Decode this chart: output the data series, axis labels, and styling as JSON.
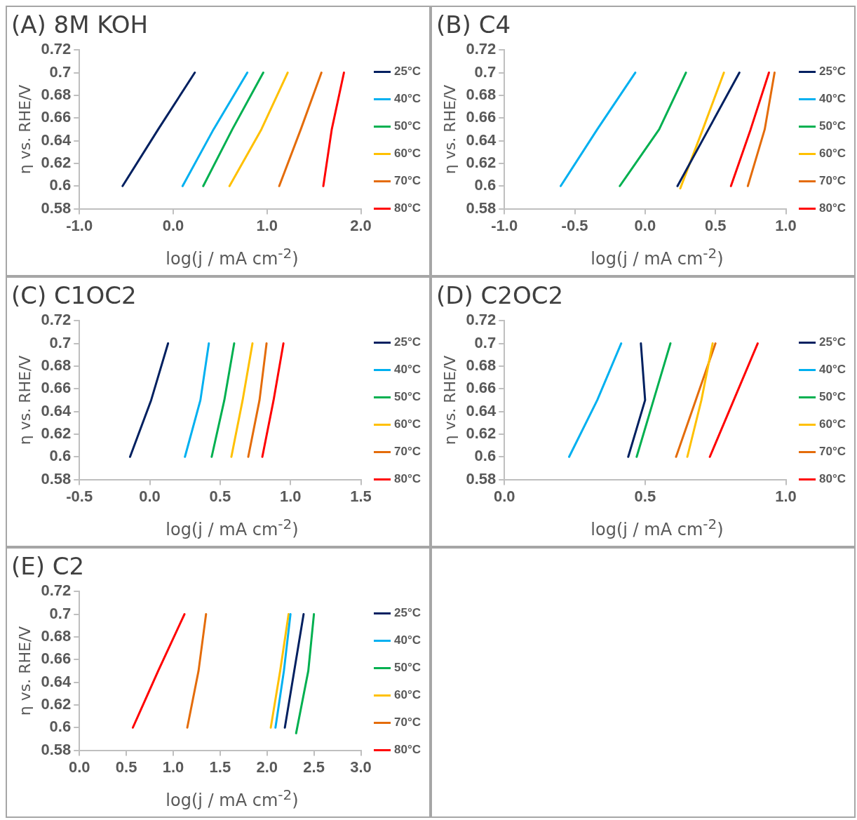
{
  "chart_data": [
    {
      "type": "line",
      "title": "(A) 8M KOH",
      "xlabel": "log(j / mA cm$^{-2}$)",
      "ylabel": "η vs. RHE/V",
      "legend": "right",
      "xlim": [
        -1,
        2
      ],
      "xticks": [
        {
          "value": -1,
          "label": "-1.0"
        },
        {
          "value": 0,
          "label": "0.0"
        },
        {
          "value": 1,
          "label": "1.0"
        },
        {
          "value": 2,
          "label": "2.0"
        }
      ],
      "ylim": [
        0.58,
        0.72
      ],
      "yticks": [
        0.58,
        0.6,
        0.62,
        0.64,
        0.66,
        0.68,
        0.7,
        0.72
      ],
      "series": [
        {
          "name": "25°C",
          "color": "#002060",
          "x": [
            -0.54,
            -0.16,
            0.23
          ],
          "values": [
            0.6,
            0.65,
            0.7
          ]
        },
        {
          "name": "40°C",
          "color": "#00b0f0",
          "x": [
            0.1,
            0.43,
            0.79
          ],
          "values": [
            0.6,
            0.65,
            0.7
          ]
        },
        {
          "name": "50°C",
          "color": "#00b050",
          "x": [
            0.32,
            0.63,
            0.96
          ],
          "values": [
            0.6,
            0.65,
            0.7
          ]
        },
        {
          "name": "60°C",
          "color": "#ffc000",
          "x": [
            0.6,
            0.94,
            1.22
          ],
          "values": [
            0.6,
            0.65,
            0.7
          ]
        },
        {
          "name": "70°C",
          "color": "#e46c0a",
          "x": [
            1.13,
            1.36,
            1.58
          ],
          "values": [
            0.6,
            0.65,
            0.7
          ]
        },
        {
          "name": "80°C",
          "color": "#ff0000",
          "x": [
            1.6,
            1.69,
            1.82
          ],
          "values": [
            0.6,
            0.65,
            0.7
          ]
        }
      ]
    },
    {
      "type": "line",
      "title": "(B) C4",
      "xlabel": "log(j / mA cm$^{-2}$)",
      "ylabel": "η vs. RHE/V",
      "legend": "right",
      "xlim": [
        -1,
        1
      ],
      "xticks": [
        {
          "value": -1,
          "label": "-1.0"
        },
        {
          "value": -0.5,
          "label": "-0.5"
        },
        {
          "value": 0,
          "label": "0.0"
        },
        {
          "value": 0.5,
          "label": "0.5"
        },
        {
          "value": 1,
          "label": "1.0"
        }
      ],
      "ylim": [
        0.58,
        0.72
      ],
      "yticks": [
        0.58,
        0.6,
        0.62,
        0.64,
        0.66,
        0.68,
        0.7,
        0.72
      ],
      "series": [
        {
          "name": "25°C",
          "color": "#002060",
          "x": [
            0.23,
            0.45,
            0.67
          ],
          "values": [
            0.6,
            0.65,
            0.7
          ]
        },
        {
          "name": "40°C",
          "color": "#00b0f0",
          "x": [
            -0.6,
            -0.34,
            -0.07
          ],
          "values": [
            0.6,
            0.65,
            0.7
          ]
        },
        {
          "name": "50°C",
          "color": "#00b050",
          "x": [
            -0.18,
            0.1,
            0.29
          ],
          "values": [
            0.6,
            0.65,
            0.7
          ]
        },
        {
          "name": "60°C",
          "color": "#ffc000",
          "x": [
            0.25,
            0.41,
            0.56
          ],
          "values": [
            0.598,
            0.65,
            0.7
          ]
        },
        {
          "name": "70°C",
          "color": "#e46c0a",
          "x": [
            0.73,
            0.85,
            0.92
          ],
          "values": [
            0.6,
            0.65,
            0.7
          ]
        },
        {
          "name": "80°C",
          "color": "#ff0000",
          "x": [
            0.61,
            0.75,
            0.88
          ],
          "values": [
            0.6,
            0.65,
            0.7
          ]
        }
      ]
    },
    {
      "type": "line",
      "title": "(C) C1OC2",
      "xlabel": "log(j / mA cm$^{-2}$)",
      "ylabel": "η vs. RHE/V",
      "legend": "right",
      "xlim": [
        -0.5,
        1.5
      ],
      "xticks": [
        {
          "value": -0.5,
          "label": "-0.5"
        },
        {
          "value": 0,
          "label": "0.0"
        },
        {
          "value": 0.5,
          "label": "0.5"
        },
        {
          "value": 1,
          "label": "1.0"
        },
        {
          "value": 1.5,
          "label": "1.5"
        }
      ],
      "ylim": [
        0.58,
        0.72
      ],
      "yticks": [
        0.58,
        0.6,
        0.62,
        0.64,
        0.66,
        0.68,
        0.7,
        0.72
      ],
      "series": [
        {
          "name": "25°C",
          "color": "#002060",
          "x": [
            -0.14,
            0.01,
            0.13
          ],
          "values": [
            0.6,
            0.65,
            0.7
          ]
        },
        {
          "name": "40°C",
          "color": "#00b0f0",
          "x": [
            0.25,
            0.36,
            0.42
          ],
          "values": [
            0.6,
            0.65,
            0.7
          ]
        },
        {
          "name": "50°C",
          "color": "#00b050",
          "x": [
            0.44,
            0.53,
            0.6
          ],
          "values": [
            0.6,
            0.65,
            0.7
          ]
        },
        {
          "name": "60°C",
          "color": "#ffc000",
          "x": [
            0.58,
            0.66,
            0.73
          ],
          "values": [
            0.6,
            0.65,
            0.7
          ]
        },
        {
          "name": "70°C",
          "color": "#e46c0a",
          "x": [
            0.7,
            0.78,
            0.83
          ],
          "values": [
            0.6,
            0.65,
            0.7
          ]
        },
        {
          "name": "80°C",
          "color": "#ff0000",
          "x": [
            0.8,
            0.88,
            0.95
          ],
          "values": [
            0.6,
            0.65,
            0.7
          ]
        }
      ]
    },
    {
      "type": "line",
      "title": "(D) C2OC2",
      "xlabel": "log(j / mA cm$^{-2}$)",
      "ylabel": "η vs. RHE/V",
      "legend": "right",
      "xlim": [
        0,
        1
      ],
      "xticks": [
        {
          "value": 0,
          "label": "0.0"
        },
        {
          "value": 0.5,
          "label": "0.5"
        },
        {
          "value": 1,
          "label": "1.0"
        }
      ],
      "ylim": [
        0.58,
        0.72
      ],
      "yticks": [
        0.58,
        0.6,
        0.62,
        0.64,
        0.66,
        0.68,
        0.7,
        0.72
      ],
      "series": [
        {
          "name": "25°C",
          "color": "#002060",
          "x": [
            0.44,
            0.47,
            0.5,
            0.485
          ],
          "values": [
            0.6,
            0.625,
            0.65,
            0.7
          ]
        },
        {
          "name": "40°C",
          "color": "#00b0f0",
          "x": [
            0.23,
            0.33,
            0.415
          ],
          "values": [
            0.6,
            0.65,
            0.7
          ]
        },
        {
          "name": "50°C",
          "color": "#00b050",
          "x": [
            0.47,
            0.53,
            0.59
          ],
          "values": [
            0.6,
            0.65,
            0.7
          ]
        },
        {
          "name": "60°C",
          "color": "#ffc000",
          "x": [
            0.65,
            0.7,
            0.74
          ],
          "values": [
            0.6,
            0.65,
            0.7
          ]
        },
        {
          "name": "70°C",
          "color": "#e46c0a",
          "x": [
            0.61,
            0.68,
            0.75
          ],
          "values": [
            0.6,
            0.65,
            0.7
          ]
        },
        {
          "name": "80°C",
          "color": "#ff0000",
          "x": [
            0.73,
            0.815,
            0.9
          ],
          "values": [
            0.6,
            0.65,
            0.7
          ]
        }
      ]
    },
    {
      "type": "line",
      "title": "(E) C2",
      "xlabel": "log(j / mA cm$^{-2}$)",
      "ylabel": "η vs. RHE/V",
      "legend": "right",
      "xlim": [
        0,
        3
      ],
      "xticks": [
        {
          "value": 0,
          "label": "0.0"
        },
        {
          "value": 0.5,
          "label": "0.5"
        },
        {
          "value": 1,
          "label": "1.0"
        },
        {
          "value": 1.5,
          "label": "1.5"
        },
        {
          "value": 2,
          "label": "2.0"
        },
        {
          "value": 2.5,
          "label": "2.5"
        },
        {
          "value": 3,
          "label": "3.0"
        }
      ],
      "ylim": [
        0.58,
        0.72
      ],
      "yticks": [
        0.58,
        0.6,
        0.62,
        0.64,
        0.66,
        0.68,
        0.7,
        0.72
      ],
      "series": [
        {
          "name": "25°C",
          "color": "#002060",
          "x": [
            2.19,
            2.29,
            2.39
          ],
          "values": [
            0.6,
            0.65,
            0.7
          ]
        },
        {
          "name": "40°C",
          "color": "#00b0f0",
          "x": [
            2.09,
            2.18,
            2.25
          ],
          "values": [
            0.6,
            0.65,
            0.7
          ]
        },
        {
          "name": "50°C",
          "color": "#00b050",
          "x": [
            2.31,
            2.44,
            2.5
          ],
          "values": [
            0.595,
            0.65,
            0.7
          ]
        },
        {
          "name": "60°C",
          "color": "#ffc000",
          "x": [
            2.04,
            2.14,
            2.23
          ],
          "values": [
            0.6,
            0.65,
            0.7
          ]
        },
        {
          "name": "70°C",
          "color": "#e46c0a",
          "x": [
            1.15,
            1.27,
            1.35
          ],
          "values": [
            0.6,
            0.65,
            0.7
          ]
        },
        {
          "name": "80°C",
          "color": "#ff0000",
          "x": [
            0.57,
            0.84,
            1.12
          ],
          "values": [
            0.6,
            0.65,
            0.7
          ]
        }
      ]
    }
  ]
}
